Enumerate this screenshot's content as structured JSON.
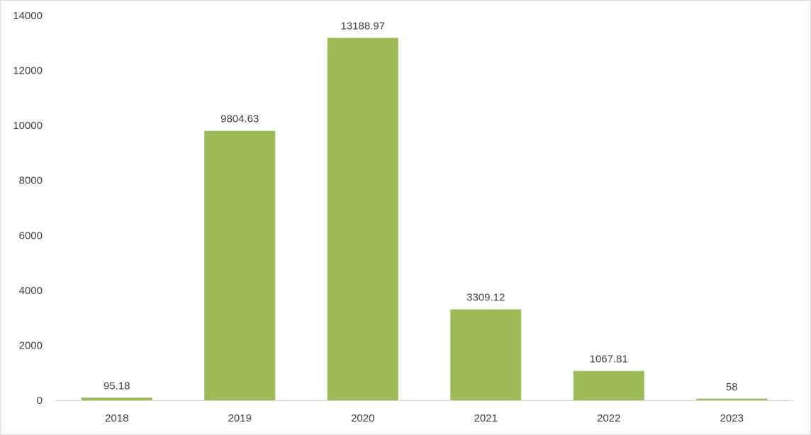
{
  "chart_data": {
    "type": "bar",
    "title": "",
    "xlabel": "",
    "ylabel": "",
    "categories": [
      "2018",
      "2019",
      "2020",
      "2021",
      "2022",
      "2023"
    ],
    "values": [
      95.18,
      9804.63,
      13188.97,
      3309.12,
      1067.81,
      58
    ],
    "value_labels": [
      "95.18",
      "9804.63",
      "13188.97",
      "3309.12",
      "1067.81",
      "58"
    ],
    "yticks": [
      0,
      2000,
      4000,
      6000,
      8000,
      10000,
      12000,
      14000
    ],
    "ytick_labels": [
      "0",
      "2000",
      "4000",
      "6000",
      "8000",
      "10000",
      "12000",
      "14000"
    ],
    "ylim": [
      0,
      14000
    ],
    "grid": false,
    "legend": "none",
    "bar_color": "#9BBB59",
    "axis_color": "#d9d9d9",
    "text_color": "#404040"
  }
}
